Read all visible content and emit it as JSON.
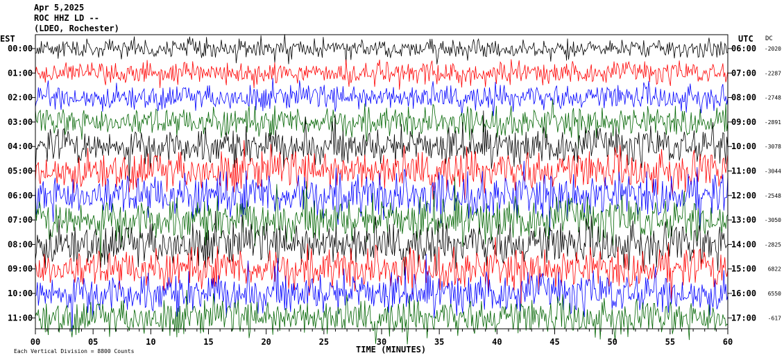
{
  "header": {
    "date": "Apr 5,2025",
    "station": "ROC HHZ LD --",
    "network": "(LDEO, Rochester)"
  },
  "left_axis_title": "EST",
  "right_axis_title": "UTC",
  "dc_title": "DC",
  "footer_note": "Each Vertical Division = 8800 Counts",
  "chart_data": {
    "type": "line",
    "title": "",
    "xlabel": "TIME (MINUTES)",
    "xlim": [
      0,
      60
    ],
    "x_ticks": [
      "00",
      "05",
      "10",
      "15",
      "20",
      "25",
      "30",
      "35",
      "40",
      "45",
      "50",
      "55",
      "60"
    ],
    "row_colors": [
      "#000000",
      "#ff0000",
      "#0000ff",
      "#006400"
    ],
    "rows": [
      {
        "est": "00:00",
        "utc": "06:00",
        "dc": "-2020",
        "amplitude": 0.5,
        "color": "#000000"
      },
      {
        "est": "01:00",
        "utc": "07:00",
        "dc": "-2287",
        "amplitude": 0.6,
        "color": "#ff0000"
      },
      {
        "est": "02:00",
        "utc": "08:00",
        "dc": "-2748",
        "amplitude": 0.7,
        "color": "#0000ff"
      },
      {
        "est": "03:00",
        "utc": "09:00",
        "dc": "-2891",
        "amplitude": 0.8,
        "color": "#006400"
      },
      {
        "est": "04:00",
        "utc": "10:00",
        "dc": "-3078",
        "amplitude": 1.0,
        "color": "#000000"
      },
      {
        "est": "05:00",
        "utc": "11:00",
        "dc": "-3044",
        "amplitude": 1.1,
        "color": "#ff0000"
      },
      {
        "est": "06:00",
        "utc": "12:00",
        "dc": "-2548",
        "amplitude": 1.2,
        "color": "#0000ff"
      },
      {
        "est": "07:00",
        "utc": "13:00",
        "dc": "-3050",
        "amplitude": 1.2,
        "color": "#006400"
      },
      {
        "est": "08:00",
        "utc": "14:00",
        "dc": "-2825",
        "amplitude": 1.2,
        "color": "#000000"
      },
      {
        "est": "09:00",
        "utc": "15:00",
        "dc": "6822",
        "amplitude": 1.1,
        "color": "#ff0000"
      },
      {
        "est": "10:00",
        "utc": "16:00",
        "dc": "6550",
        "amplitude": 1.1,
        "color": "#0000ff"
      },
      {
        "est": "11:00",
        "utc": "17:00",
        "dc": "-617",
        "amplitude": 1.0,
        "color": "#006400"
      }
    ]
  }
}
